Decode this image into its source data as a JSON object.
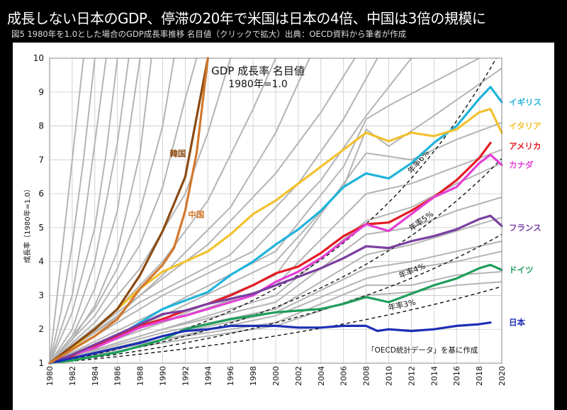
{
  "header": {
    "title": "成長しない日本のGDP、停滞の20年で米国は日本の4倍、中国は3倍の規模に",
    "subtitle": "図5 1980年を1.0とした場合のGDP成長率推移 名目値（クリックで拡大）出典：OECD資料から筆者が作成"
  },
  "chart_data": {
    "type": "line",
    "title": "GDP 成長率 名目値",
    "subtitle": "1980年=1.0",
    "ylabel": "成長率（1980年=1.0）",
    "xlabel": "",
    "xlim": [
      1980,
      2020
    ],
    "ylim": [
      1,
      10
    ],
    "x_ticks": [
      1980,
      1982,
      1984,
      1986,
      1988,
      1990,
      1992,
      1994,
      1996,
      1998,
      2000,
      2002,
      2004,
      2006,
      2008,
      2010,
      2012,
      2014,
      2016,
      2018,
      2020
    ],
    "y_ticks": [
      1,
      2,
      3,
      4,
      5,
      6,
      7,
      8,
      9,
      10
    ],
    "grid": true,
    "note": "「OECD統計データ」を基に作成",
    "series": [
      {
        "name": "イギリス",
        "color": "#1fb3da",
        "x": [
          1980,
          1982,
          1984,
          1986,
          1988,
          1990,
          1992,
          1994,
          1996,
          1998,
          2000,
          2002,
          2004,
          2006,
          2008,
          2010,
          2012,
          2014,
          2016,
          2018,
          2019,
          2020
        ],
        "y": [
          1,
          1.25,
          1.5,
          1.8,
          2.2,
          2.6,
          2.85,
          3.1,
          3.6,
          4.0,
          4.5,
          4.95,
          5.5,
          6.2,
          6.6,
          6.45,
          6.9,
          7.5,
          8.0,
          8.8,
          9.15,
          8.7
        ]
      },
      {
        "name": "イタリア",
        "color": "#f2c12e",
        "x": [
          1980,
          1982,
          1984,
          1986,
          1988,
          1990,
          1992,
          1994,
          1996,
          1998,
          2000,
          2002,
          2004,
          2006,
          2008,
          2010,
          2012,
          2014,
          2016,
          2018,
          2019,
          2020
        ],
        "y": [
          1,
          1.45,
          2.0,
          2.6,
          3.2,
          3.7,
          4.0,
          4.3,
          4.8,
          5.4,
          5.8,
          6.3,
          6.8,
          7.3,
          7.8,
          7.55,
          7.8,
          7.7,
          7.9,
          8.4,
          8.5,
          7.8
        ]
      },
      {
        "name": "アメリカ",
        "color": "#e31b23",
        "x": [
          1980,
          1982,
          1984,
          1986,
          1988,
          1990,
          1992,
          1994,
          1996,
          1998,
          2000,
          2002,
          2004,
          2006,
          2008,
          2010,
          2012,
          2014,
          2016,
          2018,
          2019
        ],
        "y": [
          1,
          1.22,
          1.5,
          1.8,
          2.1,
          2.3,
          2.55,
          2.75,
          3.0,
          3.3,
          3.65,
          3.85,
          4.25,
          4.75,
          5.1,
          5.15,
          5.5,
          5.9,
          6.4,
          7.05,
          7.5
        ]
      },
      {
        "name": "カナダ",
        "color": "#e43fd6",
        "x": [
          1980,
          1982,
          1984,
          1986,
          1988,
          1990,
          1992,
          1994,
          1996,
          1998,
          2000,
          2002,
          2004,
          2006,
          2008,
          2010,
          2012,
          2014,
          2016,
          2018,
          2019,
          2020
        ],
        "y": [
          1,
          1.25,
          1.45,
          1.75,
          2.05,
          2.25,
          2.4,
          2.6,
          2.8,
          3.0,
          3.4,
          3.7,
          4.1,
          4.6,
          5.1,
          4.9,
          5.4,
          5.9,
          6.2,
          6.9,
          7.15,
          6.85
        ]
      },
      {
        "name": "フランス",
        "color": "#7a3ea0",
        "x": [
          1980,
          1982,
          1984,
          1986,
          1988,
          1990,
          1992,
          1994,
          1996,
          1998,
          2000,
          2002,
          2004,
          2006,
          2008,
          2010,
          2012,
          2014,
          2016,
          2018,
          2019,
          2020
        ],
        "y": [
          1,
          1.25,
          1.55,
          1.85,
          2.15,
          2.45,
          2.55,
          2.75,
          2.9,
          3.05,
          3.3,
          3.55,
          3.8,
          4.1,
          4.45,
          4.4,
          4.6,
          4.75,
          4.95,
          5.25,
          5.35,
          5.05
        ]
      },
      {
        "name": "ドイツ",
        "color": "#1e9e5b",
        "x": [
          1980,
          1982,
          1984,
          1986,
          1988,
          1990,
          1992,
          1994,
          1996,
          1998,
          2000,
          2002,
          2004,
          2006,
          2008,
          2010,
          2012,
          2014,
          2016,
          2018,
          2019,
          2020
        ],
        "y": [
          1,
          1.08,
          1.2,
          1.32,
          1.5,
          1.7,
          2.0,
          2.15,
          2.3,
          2.4,
          2.5,
          2.55,
          2.6,
          2.75,
          2.95,
          2.8,
          3.05,
          3.3,
          3.5,
          3.8,
          3.9,
          3.75
        ]
      },
      {
        "name": "日本",
        "color": "#1c2fb5",
        "x": [
          1980,
          1982,
          1984,
          1986,
          1988,
          1990,
          1992,
          1994,
          1996,
          1998,
          2000,
          2002,
          2004,
          2006,
          2008,
          2009,
          2010,
          2012,
          2014,
          2016,
          2018,
          2019
        ],
        "y": [
          1,
          1.15,
          1.3,
          1.45,
          1.6,
          1.8,
          1.95,
          2.0,
          2.1,
          2.1,
          2.1,
          2.05,
          2.05,
          2.1,
          2.1,
          1.95,
          2.0,
          1.95,
          2.0,
          2.1,
          2.15,
          2.2
        ]
      },
      {
        "name": "韓国",
        "color": "#8b4a12",
        "x": [
          1980,
          1982,
          1984,
          1986,
          1988,
          1990,
          1992,
          1994
        ],
        "y": [
          1,
          1.5,
          2.0,
          2.6,
          3.6,
          4.9,
          6.5,
          10.0
        ]
      },
      {
        "name": "中国",
        "color": "#d2782d",
        "x": [
          1980,
          1982,
          1984,
          1986,
          1988,
          1990,
          1991,
          1992,
          1993,
          1994
        ],
        "y": [
          1,
          1.4,
          1.8,
          2.3,
          3.2,
          3.9,
          4.4,
          5.5,
          7.2,
          10.0
        ]
      }
    ],
    "gray_series": [
      {
        "x": [
          1980,
          1981,
          1982,
          1983
        ],
        "y": [
          1,
          4,
          7,
          10
        ]
      },
      {
        "x": [
          1980,
          1981,
          1982,
          1983,
          1984
        ],
        "y": [
          1,
          2.5,
          4.5,
          7,
          10
        ]
      },
      {
        "x": [
          1980,
          1982,
          1983,
          1984,
          1985
        ],
        "y": [
          1,
          3.0,
          5.0,
          7.5,
          10
        ]
      },
      {
        "x": [
          1980,
          1982,
          1984,
          1985,
          1986
        ],
        "y": [
          1,
          2.5,
          5.0,
          7.2,
          10
        ]
      },
      {
        "x": [
          1980,
          1982,
          1984,
          1986,
          1987
        ],
        "y": [
          1,
          2.0,
          4.0,
          7.5,
          10
        ]
      },
      {
        "x": [
          1980,
          1982,
          1984,
          1986,
          1988
        ],
        "y": [
          1,
          1.8,
          3.2,
          5.5,
          10
        ]
      },
      {
        "x": [
          1980,
          1982,
          1984,
          1986,
          1988,
          1989
        ],
        "y": [
          1,
          1.7,
          2.7,
          4.3,
          7.2,
          10
        ]
      },
      {
        "x": [
          1980,
          1984,
          1986,
          1988,
          1990,
          1991
        ],
        "y": [
          1,
          2.6,
          3.8,
          5.5,
          8.0,
          10
        ]
      },
      {
        "x": [
          1980,
          1984,
          1988,
          1990,
          1992,
          1993
        ],
        "y": [
          1,
          2.4,
          4.5,
          6.2,
          8.8,
          10
        ]
      },
      {
        "x": [
          1980,
          1984,
          1988,
          1992,
          1994,
          1996
        ],
        "y": [
          1,
          2.2,
          3.8,
          6.0,
          7.8,
          10
        ]
      },
      {
        "x": [
          1980,
          1986,
          1990,
          1994,
          1998,
          2000
        ],
        "y": [
          1,
          2.6,
          4.0,
          5.8,
          8.5,
          10
        ]
      },
      {
        "x": [
          1980,
          1986,
          1990,
          1996,
          2000,
          2003
        ],
        "y": [
          1,
          2.4,
          3.6,
          5.6,
          7.8,
          10
        ]
      },
      {
        "x": [
          1980,
          1988,
          1994,
          2000,
          2004,
          2007
        ],
        "y": [
          1,
          3.0,
          4.5,
          6.6,
          8.4,
          10
        ]
      },
      {
        "x": [
          1980,
          1988,
          1996,
          2002,
          2006,
          2009
        ],
        "y": [
          1,
          2.8,
          4.2,
          6.3,
          8.2,
          10
        ]
      },
      {
        "x": [
          1980,
          1990,
          1998,
          2004,
          2008,
          2012
        ],
        "y": [
          1,
          3.0,
          4.3,
          6.4,
          8.3,
          10
        ]
      },
      {
        "x": [
          1980,
          1990,
          2000,
          2006,
          2008,
          2010,
          2014,
          2018
        ],
        "y": [
          1,
          2.6,
          4.3,
          6.8,
          8.2,
          8.6,
          9.3,
          10
        ]
      },
      {
        "x": [
          1980,
          1990,
          2000,
          2006,
          2008,
          2010,
          2014,
          2020
        ],
        "y": [
          1,
          2.4,
          4.0,
          6.2,
          7.9,
          7.4,
          8.3,
          9.7
        ]
      },
      {
        "x": [
          1980,
          1990,
          2000,
          2008,
          2012,
          2016,
          2020
        ],
        "y": [
          1,
          2.2,
          3.6,
          7.2,
          7.0,
          7.6,
          8.1
        ]
      },
      {
        "x": [
          1980,
          1990,
          2000,
          2008,
          2012,
          2016,
          2020
        ],
        "y": [
          1,
          2.2,
          3.3,
          6.0,
          6.3,
          6.8,
          7.3
        ]
      },
      {
        "x": [
          1980,
          1990,
          2000,
          2008,
          2012,
          2016,
          2020
        ],
        "y": [
          1,
          2.0,
          3.0,
          5.2,
          5.6,
          6.3,
          6.9
        ]
      },
      {
        "x": [
          1980,
          1990,
          2000,
          2008,
          2012,
          2016,
          2020
        ],
        "y": [
          1,
          2.0,
          2.8,
          4.8,
          5.0,
          5.5,
          5.9
        ]
      },
      {
        "x": [
          1980,
          1990,
          2000,
          2008,
          2012,
          2016,
          2020
        ],
        "y": [
          1,
          1.9,
          2.6,
          4.2,
          4.5,
          4.9,
          5.3
        ]
      },
      {
        "x": [
          1980,
          1990,
          2000,
          2008,
          2012,
          2016,
          2020
        ],
        "y": [
          1,
          1.8,
          2.5,
          3.8,
          4.0,
          4.3,
          4.6
        ]
      },
      {
        "x": [
          1980,
          1990,
          2000,
          2008,
          2012,
          2016,
          2020
        ],
        "y": [
          1,
          1.7,
          2.4,
          3.5,
          3.8,
          4.0,
          4.3
        ]
      },
      {
        "x": [
          1980,
          1990,
          2000,
          2008,
          2012,
          2016,
          2020
        ],
        "y": [
          1,
          1.7,
          2.2,
          3.3,
          3.3,
          3.6,
          3.7
        ]
      },
      {
        "x": [
          1980,
          1990,
          2000,
          2008,
          2012,
          2016,
          2020
        ],
        "y": [
          1,
          1.6,
          2.1,
          3.0,
          3.1,
          3.3,
          3.4
        ]
      }
    ],
    "reference_lines": [
      {
        "name": "年率6%",
        "rate": 0.06
      },
      {
        "name": "年率5%",
        "rate": 0.05
      },
      {
        "name": "年率4%",
        "rate": 0.04
      },
      {
        "name": "年率3%",
        "rate": 0.03
      }
    ]
  }
}
